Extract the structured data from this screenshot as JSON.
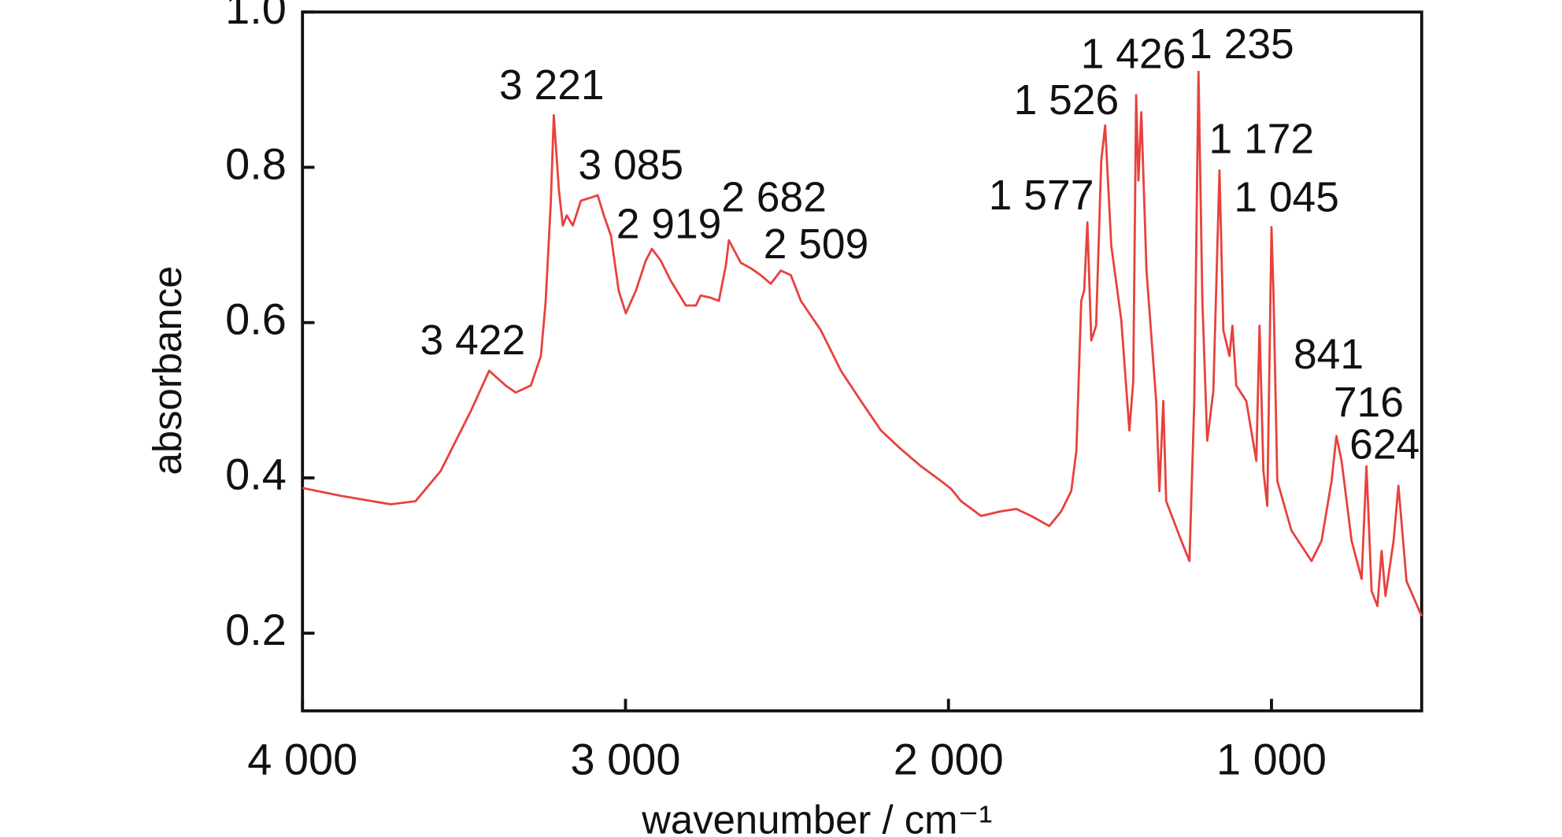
{
  "chart_data": {
    "type": "line",
    "xlabel": "wavenumber / cm⁻¹",
    "ylabel": "absorbance",
    "xlim": [
      4000,
      535
    ],
    "ylim": [
      0.1,
      1.0
    ],
    "xticks": [
      {
        "value": 4000,
        "label": "4 000"
      },
      {
        "value": 3000,
        "label": "3 000"
      },
      {
        "value": 2000,
        "label": "2 000"
      },
      {
        "value": 1000,
        "label": "1 000"
      }
    ],
    "yticks": [
      0.2,
      0.4,
      0.6,
      0.8,
      {
        "value": 1,
        "label": "1.0"
      }
    ],
    "grid": false,
    "series": [
      {
        "color": "#e8413c",
        "x": [
          4000,
          3882,
          3727,
          3650,
          3572,
          3479,
          3422,
          3371,
          3340,
          3293,
          3262,
          3247,
          3231,
          3222,
          3206,
          3194,
          3182,
          3163,
          3138,
          3107,
          3086,
          3067,
          3045,
          3021,
          2999,
          2968,
          2937,
          2918,
          2891,
          2860,
          2813,
          2782,
          2767,
          2736,
          2711,
          2689,
          2680,
          2643,
          2612,
          2581,
          2550,
          2519,
          2488,
          2457,
          2395,
          2333,
          2271,
          2209,
          2147,
          2085,
          2023,
          1992,
          1961,
          1899,
          1837,
          1790,
          1744,
          1688,
          1651,
          1620,
          1604,
          1589,
          1580,
          1570,
          1558,
          1543,
          1527,
          1515,
          1496,
          1465,
          1440,
          1428,
          1419,
          1412,
          1403,
          1387,
          1357,
          1347,
          1335,
          1326,
          1279,
          1254,
          1239,
          1226,
          1214,
          1199,
          1180,
          1161,
          1149,
          1130,
          1121,
          1109,
          1078,
          1047,
          1037,
          1025,
          1013,
          1000,
          994,
          982,
          938,
          876,
          845,
          814,
          799,
          783,
          752,
          721,
          706,
          690,
          672,
          659,
          647,
          622,
          607,
          582,
          535
        ],
        "values": [
          0.387,
          0.377,
          0.366,
          0.37,
          0.409,
          0.486,
          0.538,
          0.519,
          0.51,
          0.519,
          0.557,
          0.628,
          0.757,
          0.867,
          0.77,
          0.725,
          0.738,
          0.725,
          0.757,
          0.761,
          0.764,
          0.738,
          0.712,
          0.641,
          0.612,
          0.641,
          0.68,
          0.695,
          0.68,
          0.654,
          0.622,
          0.622,
          0.635,
          0.632,
          0.628,
          0.674,
          0.706,
          0.677,
          0.67,
          0.661,
          0.65,
          0.667,
          0.661,
          0.628,
          0.59,
          0.538,
          0.499,
          0.461,
          0.437,
          0.415,
          0.396,
          0.386,
          0.37,
          0.351,
          0.357,
          0.36,
          0.351,
          0.338,
          0.357,
          0.383,
          0.435,
          0.628,
          0.641,
          0.729,
          0.577,
          0.596,
          0.809,
          0.854,
          0.699,
          0.603,
          0.461,
          0.525,
          0.893,
          0.783,
          0.871,
          0.667,
          0.499,
          0.383,
          0.499,
          0.37,
          0.319,
          0.293,
          0.499,
          0.923,
          0.628,
          0.448,
          0.512,
          0.796,
          0.59,
          0.557,
          0.596,
          0.519,
          0.499,
          0.422,
          0.596,
          0.409,
          0.364,
          0.723,
          0.641,
          0.396,
          0.332,
          0.293,
          0.319,
          0.396,
          0.454,
          0.422,
          0.319,
          0.27,
          0.415,
          0.254,
          0.235,
          0.306,
          0.248,
          0.319,
          0.39,
          0.267,
          0.222
        ]
      }
    ],
    "annotations": [
      "3 422",
      "3 221",
      "3 085",
      "2 919",
      "2 682",
      "2 509",
      "1 577",
      "1 526",
      "1 426",
      "1 235",
      "1 172",
      "1 045",
      "841",
      "716",
      "624"
    ]
  }
}
